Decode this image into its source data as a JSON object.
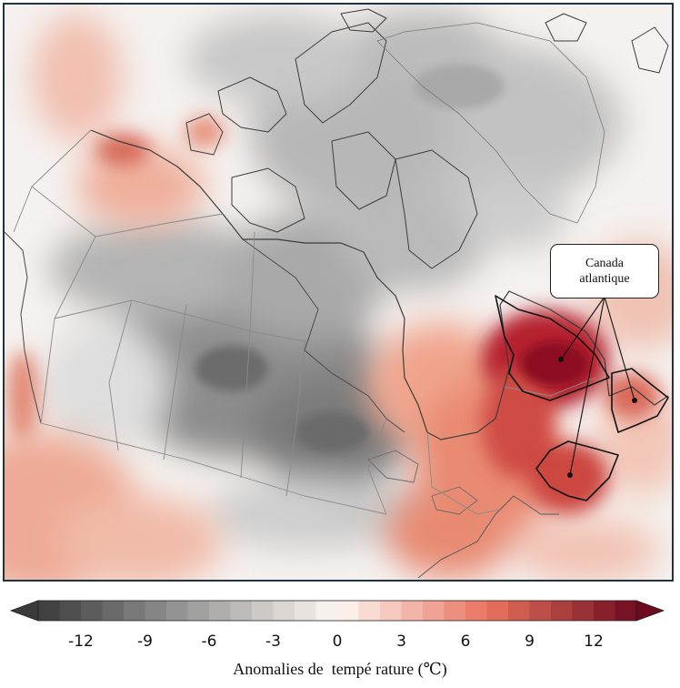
{
  "callout": {
    "line1": "Canada",
    "line2": "atlantique"
  },
  "legend": {
    "title": "Anomalies de  tempé rature (℃)",
    "ticks": [
      {
        "value": -12,
        "label": "-12"
      },
      {
        "value": -9,
        "label": "-9"
      },
      {
        "value": -6,
        "label": "-6"
      },
      {
        "value": -3,
        "label": "-3"
      },
      {
        "value": 0,
        "label": "0"
      },
      {
        "value": 3,
        "label": "3"
      },
      {
        "value": 6,
        "label": "6"
      },
      {
        "value": 9,
        "label": "9"
      },
      {
        "value": 12,
        "label": "12"
      }
    ],
    "range": [
      -14,
      14
    ],
    "step": 1,
    "colors": {
      "cold_extreme": "#3a3a3a",
      "cold_mid": "#9a9a9a",
      "neutral": "#fdf7f4",
      "warm_mid": "#e9735e",
      "warm_extreme": "#6d0a1e"
    }
  },
  "map_colors": {
    "frame": "#1f3442",
    "coastline": "#3a3a3a",
    "border": "#888888",
    "atlantic_outline": "#111111"
  }
}
